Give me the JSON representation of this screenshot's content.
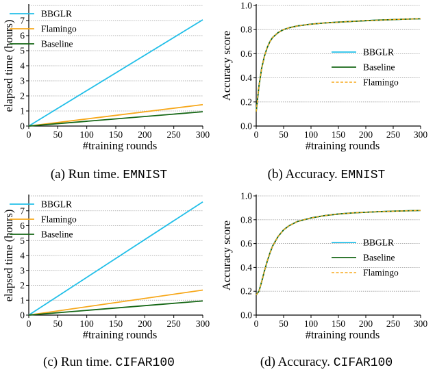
{
  "colors": {
    "bbglr": "#22bfe8",
    "flamingo": "#f7a81b",
    "baseline": "#146614",
    "grid": "#9a9a9a"
  },
  "captions": [
    {
      "text": "(a) Run time.",
      "dataset": "EMNIST"
    },
    {
      "text": "(b) Accuracy.",
      "dataset": "EMNIST"
    },
    {
      "text": "(c) Run time.",
      "dataset": "CIFAR100"
    },
    {
      "text": "(d) Accuracy.",
      "dataset": "CIFAR100"
    }
  ],
  "chart_data": [
    {
      "type": "line",
      "xlabel": "#training rounds",
      "ylabel": "elapsed time (hours)",
      "xlim": [
        0,
        300
      ],
      "ylim": [
        0,
        8
      ],
      "xticks": [
        0,
        50,
        100,
        150,
        200,
        250,
        300
      ],
      "yticks": [
        0,
        1,
        2,
        3,
        4,
        5,
        6,
        7
      ],
      "grid": true,
      "legend_position": "top-left",
      "series": [
        {
          "name": "BBGLR",
          "color": "#22bfe8",
          "x": [
            0,
            300
          ],
          "values": [
            0,
            7.05
          ]
        },
        {
          "name": "Flamingo",
          "color": "#f7a81b",
          "x": [
            0,
            300
          ],
          "values": [
            0,
            1.42
          ]
        },
        {
          "name": "Baseline",
          "color": "#146614",
          "x": [
            0,
            300
          ],
          "values": [
            0,
            0.95
          ]
        }
      ]
    },
    {
      "type": "line",
      "xlabel": "#training rounds",
      "ylabel": "Accuracy score",
      "xlim": [
        0,
        300
      ],
      "ylim": [
        0,
        1.0
      ],
      "xticks": [
        0,
        50,
        100,
        150,
        200,
        250,
        300
      ],
      "yticks": [
        0.0,
        0.2,
        0.4,
        0.6,
        0.8,
        1.0
      ],
      "ytick_labels": [
        "0.0",
        "0.2",
        "0.4",
        "0.6",
        "0.8",
        "1.0"
      ],
      "grid": true,
      "legend_position": "center-right",
      "series": [
        {
          "name": "BBGLR",
          "color": "#22bfe8",
          "dash": false,
          "x": [
            0,
            5,
            10,
            15,
            20,
            25,
            30,
            40,
            50,
            60,
            75,
            100,
            125,
            150,
            175,
            200,
            225,
            250,
            275,
            300
          ],
          "values": [
            0.12,
            0.33,
            0.48,
            0.58,
            0.65,
            0.7,
            0.735,
            0.775,
            0.8,
            0.815,
            0.83,
            0.845,
            0.855,
            0.862,
            0.868,
            0.874,
            0.879,
            0.883,
            0.887,
            0.89
          ]
        },
        {
          "name": "Baseline",
          "color": "#146614",
          "dash": false,
          "x": [
            0,
            5,
            10,
            15,
            20,
            25,
            30,
            40,
            50,
            60,
            75,
            100,
            125,
            150,
            175,
            200,
            225,
            250,
            275,
            300
          ],
          "values": [
            0.12,
            0.33,
            0.48,
            0.58,
            0.65,
            0.7,
            0.735,
            0.775,
            0.8,
            0.815,
            0.83,
            0.845,
            0.855,
            0.862,
            0.868,
            0.874,
            0.879,
            0.883,
            0.887,
            0.89
          ]
        },
        {
          "name": "Flamingo",
          "color": "#f7a81b",
          "dash": true,
          "x": [
            0,
            5,
            10,
            15,
            20,
            25,
            30,
            40,
            50,
            60,
            75,
            100,
            125,
            150,
            175,
            200,
            225,
            250,
            275,
            300
          ],
          "values": [
            0.12,
            0.33,
            0.48,
            0.58,
            0.65,
            0.7,
            0.735,
            0.775,
            0.8,
            0.815,
            0.83,
            0.845,
            0.855,
            0.862,
            0.868,
            0.874,
            0.879,
            0.883,
            0.887,
            0.89
          ]
        }
      ]
    },
    {
      "type": "line",
      "xlabel": "#training rounds",
      "ylabel": "elapsed time (hours)",
      "xlim": [
        0,
        300
      ],
      "ylim": [
        0,
        8
      ],
      "xticks": [
        0,
        50,
        100,
        150,
        200,
        250,
        300
      ],
      "yticks": [
        0,
        1,
        2,
        3,
        4,
        5,
        6,
        7
      ],
      "grid": true,
      "legend_position": "top-left",
      "series": [
        {
          "name": "BBGLR",
          "color": "#22bfe8",
          "x": [
            0,
            300
          ],
          "values": [
            0,
            7.6
          ]
        },
        {
          "name": "Flamingo",
          "color": "#f7a81b",
          "x": [
            0,
            300
          ],
          "values": [
            0,
            1.68
          ]
        },
        {
          "name": "Baseline",
          "color": "#146614",
          "x": [
            0,
            300
          ],
          "values": [
            0,
            0.95
          ]
        }
      ]
    },
    {
      "type": "line",
      "xlabel": "#training rounds",
      "ylabel": "Accuracy score",
      "xlim": [
        0,
        300
      ],
      "ylim": [
        0,
        1.0
      ],
      "xticks": [
        0,
        50,
        100,
        150,
        200,
        250,
        300
      ],
      "yticks": [
        0.0,
        0.2,
        0.4,
        0.6,
        0.8,
        1.0
      ],
      "ytick_labels": [
        "0.0",
        "0.2",
        "0.4",
        "0.6",
        "0.8",
        "1.0"
      ],
      "grid": true,
      "legend_position": "center-right",
      "series": [
        {
          "name": "BBGLR",
          "color": "#22bfe8",
          "dash": false,
          "x": [
            0,
            5,
            10,
            15,
            20,
            25,
            30,
            40,
            50,
            60,
            75,
            100,
            125,
            150,
            175,
            200,
            225,
            250,
            275,
            300
          ],
          "values": [
            0.17,
            0.2,
            0.28,
            0.37,
            0.45,
            0.52,
            0.58,
            0.66,
            0.715,
            0.75,
            0.785,
            0.815,
            0.835,
            0.848,
            0.857,
            0.863,
            0.868,
            0.872,
            0.875,
            0.878
          ]
        },
        {
          "name": "Baseline",
          "color": "#146614",
          "dash": false,
          "x": [
            0,
            5,
            10,
            15,
            20,
            25,
            30,
            40,
            50,
            60,
            75,
            100,
            125,
            150,
            175,
            200,
            225,
            250,
            275,
            300
          ],
          "values": [
            0.17,
            0.2,
            0.28,
            0.37,
            0.45,
            0.52,
            0.58,
            0.66,
            0.715,
            0.75,
            0.785,
            0.815,
            0.835,
            0.848,
            0.857,
            0.863,
            0.868,
            0.872,
            0.875,
            0.878
          ]
        },
        {
          "name": "Flamingo",
          "color": "#f7a81b",
          "dash": true,
          "x": [
            0,
            5,
            10,
            15,
            20,
            25,
            30,
            40,
            50,
            60,
            75,
            100,
            125,
            150,
            175,
            200,
            225,
            250,
            275,
            300
          ],
          "values": [
            0.17,
            0.2,
            0.28,
            0.37,
            0.45,
            0.52,
            0.58,
            0.66,
            0.715,
            0.75,
            0.785,
            0.815,
            0.835,
            0.848,
            0.857,
            0.863,
            0.868,
            0.872,
            0.875,
            0.878
          ]
        }
      ]
    }
  ]
}
